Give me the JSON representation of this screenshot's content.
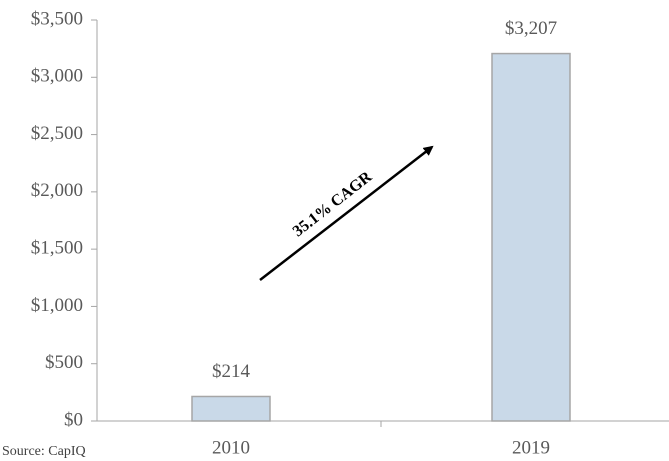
{
  "chart_data": {
    "type": "bar",
    "categories": [
      "2010",
      "2019"
    ],
    "values": [
      214,
      3207
    ],
    "value_labels": [
      "$214",
      "$3,207"
    ],
    "color": "#c9d9e8",
    "ylim": [
      0,
      3500
    ],
    "yticks": [
      {
        "value": 0,
        "label": "$0"
      },
      {
        "value": 500,
        "label": "$500"
      },
      {
        "value": 1000,
        "label": "$1,000"
      },
      {
        "value": 1500,
        "label": "$1,500"
      },
      {
        "value": 2000,
        "label": "$2,000"
      },
      {
        "value": 2500,
        "label": "$2,500"
      },
      {
        "value": 3000,
        "label": "$3,000"
      },
      {
        "value": 3500,
        "label": "$3,500"
      }
    ],
    "grid": false,
    "annotation": "35.1% CAGR",
    "source": "Source: CapIQ"
  }
}
